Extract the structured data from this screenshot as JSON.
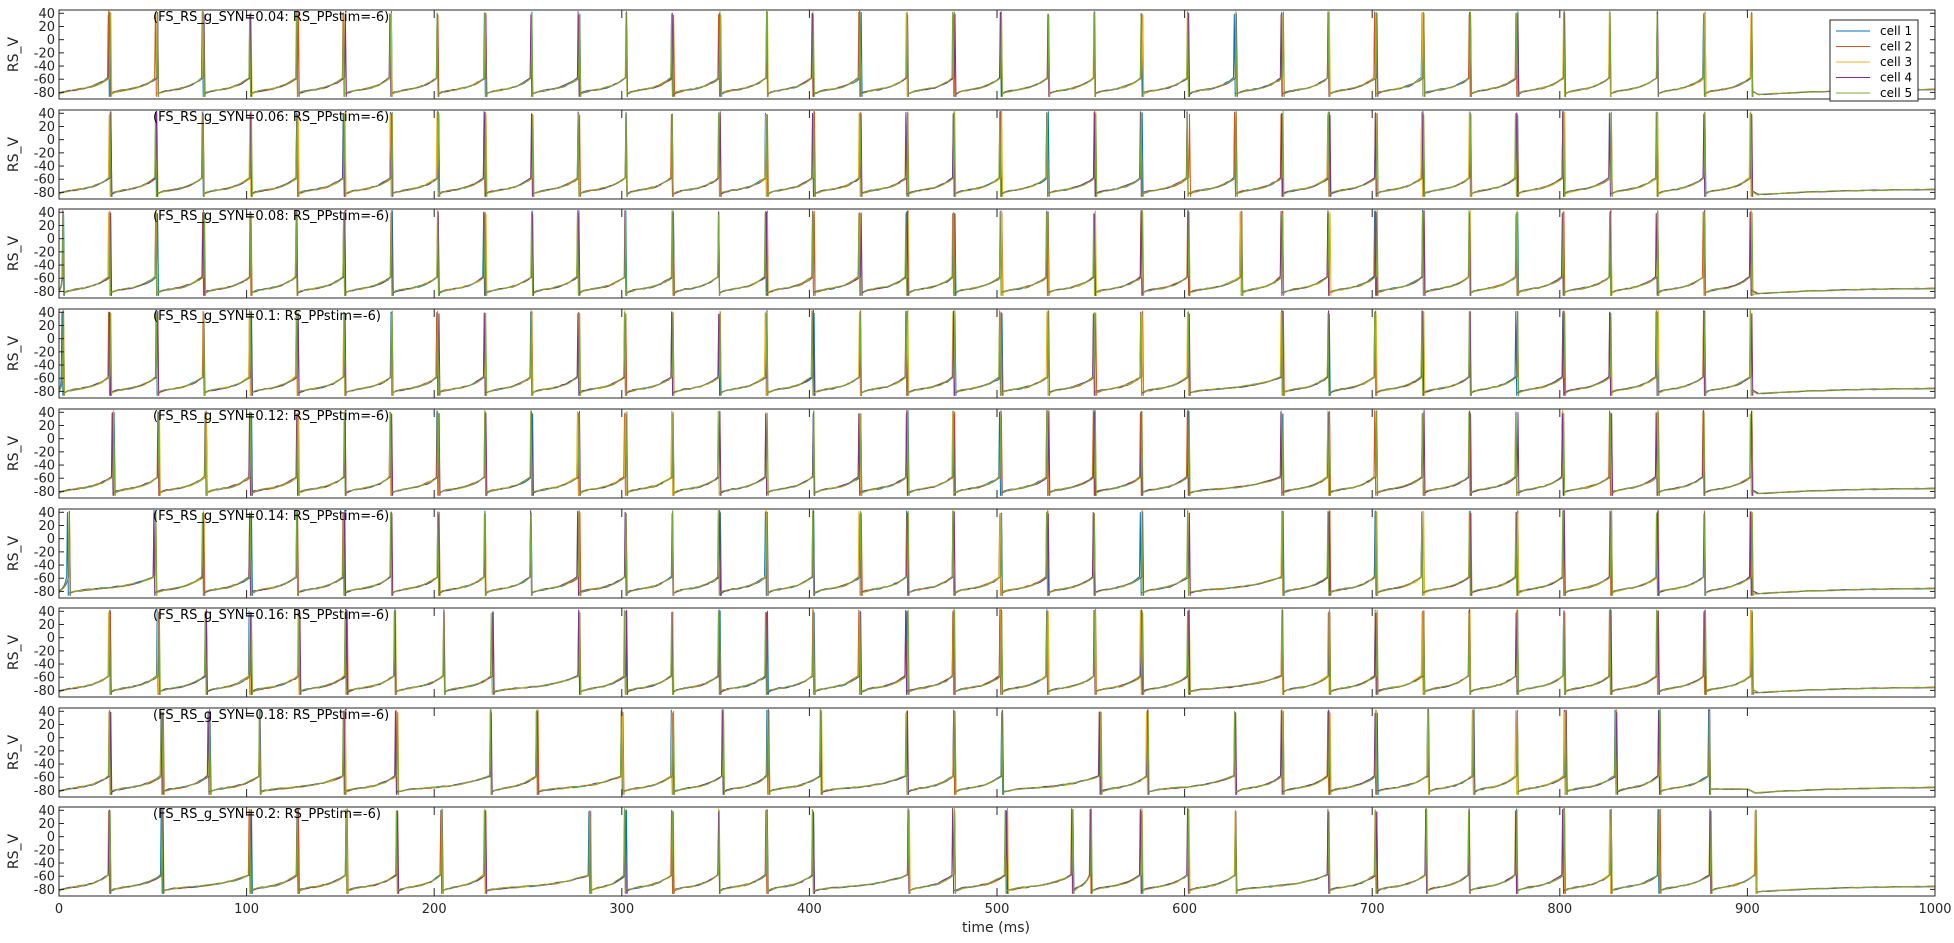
{
  "chart_data": {
    "type": "line",
    "xlabel": "time (ms)",
    "ylabel": "RS_V",
    "xlim": [
      0,
      1000
    ],
    "ylim": [
      -90,
      45
    ],
    "xticks": [
      "0",
      "100",
      "200",
      "300",
      "400",
      "500",
      "600",
      "700",
      "800",
      "900",
      "1000"
    ],
    "yticks": [
      "40",
      "20",
      "0",
      "-20",
      "-40",
      "-60",
      "-80"
    ],
    "legend": [
      "cell 1",
      "cell 2",
      "cell 3",
      "cell 4",
      "cell 5"
    ],
    "legend_position": "top-right",
    "colors": [
      "#0072BD",
      "#D95319",
      "#EDB120",
      "#7E2F8E",
      "#77AC30"
    ],
    "rest_potential": -80,
    "spike_peak": 40,
    "stim_end_ms": 903,
    "panels": [
      {
        "title": "(FS_RS_g_SYN=0.04: RS_PPstim=-6)",
        "g_syn": 0.04,
        "spike_times": [
          27,
          52,
          77,
          102,
          127,
          152,
          177,
          202,
          227,
          252,
          277,
          302,
          327,
          352,
          377,
          402,
          427,
          452,
          477,
          502,
          527,
          552,
          577,
          602,
          627,
          652,
          677,
          702,
          727,
          752,
          777,
          802,
          827,
          852,
          877,
          902
        ]
      },
      {
        "title": "(FS_RS_g_SYN=0.06: RS_PPstim=-6)",
        "g_syn": 0.06,
        "spike_times": [
          27,
          52,
          77,
          102,
          127,
          152,
          177,
          202,
          227,
          252,
          277,
          302,
          327,
          352,
          377,
          402,
          427,
          452,
          477,
          502,
          527,
          552,
          577,
          602,
          627,
          652,
          677,
          702,
          727,
          752,
          777,
          802,
          827,
          852,
          877,
          902
        ]
      },
      {
        "title": "(FS_RS_g_SYN=0.08: RS_PPstim=-6)",
        "g_syn": 0.08,
        "spike_times": [
          2,
          27,
          52,
          77,
          102,
          127,
          152,
          177,
          202,
          227,
          252,
          277,
          302,
          327,
          352,
          377,
          402,
          427,
          452,
          477,
          502,
          527,
          552,
          577,
          602,
          630,
          652,
          677,
          702,
          727,
          752,
          777,
          802,
          827,
          852,
          877,
          902
        ]
      },
      {
        "title": "(FS_RS_g_SYN=0.1: RS_PPstim=-6)",
        "g_syn": 0.1,
        "spike_times": [
          2,
          27,
          52,
          77,
          102,
          127,
          152,
          177,
          202,
          227,
          252,
          277,
          302,
          327,
          352,
          377,
          402,
          427,
          452,
          477,
          502,
          527,
          552,
          577,
          602,
          652,
          677,
          702,
          727,
          752,
          777,
          802,
          827,
          852,
          877,
          902
        ]
      },
      {
        "title": "(FS_RS_g_SYN=0.12: RS_PPstim=-6)",
        "g_syn": 0.12,
        "spike_times": [
          29,
          53,
          78,
          102,
          127,
          152,
          177,
          202,
          227,
          252,
          277,
          302,
          327,
          352,
          377,
          402,
          427,
          452,
          477,
          502,
          527,
          552,
          577,
          602,
          652,
          677,
          702,
          727,
          752,
          777,
          802,
          827,
          852,
          877,
          902
        ]
      },
      {
        "title": "(FS_RS_g_SYN=0.14: RS_PPstim=-6)",
        "g_syn": 0.14,
        "spike_times": [
          5,
          51,
          77,
          102,
          127,
          152,
          177,
          202,
          227,
          252,
          277,
          302,
          327,
          352,
          377,
          402,
          427,
          452,
          477,
          502,
          527,
          552,
          577,
          602,
          652,
          677,
          702,
          727,
          752,
          777,
          802,
          827,
          852,
          877,
          902
        ]
      },
      {
        "title": "(FS_RS_g_SYN=0.16: RS_PPstim=-6)",
        "g_syn": 0.16,
        "spike_times": [
          27,
          53,
          78,
          102,
          128,
          153,
          179,
          205,
          231,
          277,
          302,
          327,
          352,
          377,
          402,
          427,
          452,
          477,
          502,
          527,
          552,
          577,
          602,
          652,
          677,
          702,
          727,
          752,
          777,
          802,
          827,
          852,
          877,
          902
        ]
      },
      {
        "title": "(FS_RS_g_SYN=0.18: RS_PPstim=-6)",
        "g_syn": 0.18,
        "spike_times": [
          27,
          55,
          80,
          107,
          152,
          180,
          230,
          255,
          300,
          327,
          354,
          378,
          406,
          452,
          477,
          503,
          555,
          580,
          627,
          652,
          677,
          702,
          730,
          754,
          777,
          803,
          830,
          853,
          880
        ]
      },
      {
        "title": "(FS_RS_g_SYN=0.2: RS_PPstim=-6)",
        "g_syn": 0.2,
        "spike_times": [
          27,
          55,
          102,
          127,
          153,
          180,
          204,
          227,
          283,
          302,
          327,
          352,
          377,
          402,
          453,
          477,
          505,
          540,
          550,
          577,
          602,
          627,
          677,
          702,
          729,
          752,
          777,
          802,
          827,
          853,
          880,
          904
        ]
      }
    ]
  }
}
